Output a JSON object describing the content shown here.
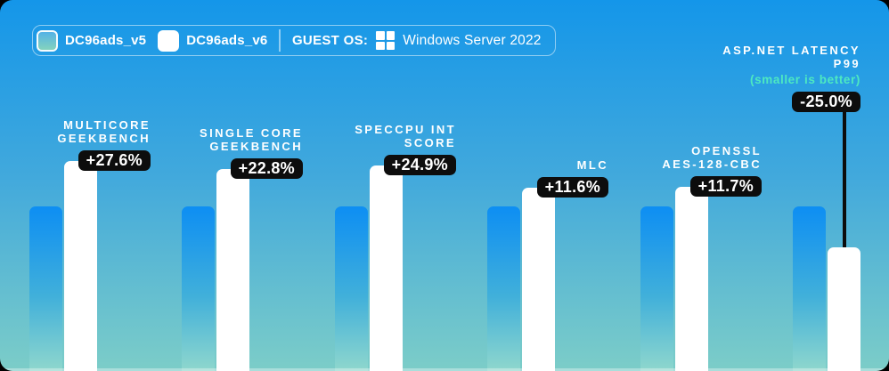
{
  "legend": {
    "series": [
      {
        "label": "DC96ads_v5",
        "swatch": "blue-teal-gradient"
      },
      {
        "label": "DC96ads_v6",
        "swatch": "white"
      }
    ],
    "guest_os_label": "GUEST OS:",
    "guest_os_icon": "windows-logo",
    "guest_os_value": "Windows Server 2022"
  },
  "colors": {
    "background_top": "#1496e9",
    "background_bottom": "#7ccdc8",
    "bar_v5_top": "#0d8ef3",
    "bar_v5_bottom": "#8fd7cd",
    "bar_v6": "#ffffff",
    "badge_bg": "#0d0d0d",
    "badge_text": "#ffffff",
    "note_accent": "#4de9c1",
    "text": "#ffffff"
  },
  "chart_data": {
    "type": "bar",
    "series": [
      "DC96ads_v5",
      "DC96ads_v6"
    ],
    "legend_position": "top-left",
    "grid": false,
    "categories": [
      "Multicore Geekbench",
      "Single Core Geekbench",
      "SPECcpu Int Score",
      "MLC",
      "OpenSSL AES-128-CBC",
      "ASP.NET Latency P99"
    ],
    "groups": [
      {
        "title_lines": [
          "MULTICORE",
          "GEEKBENCH"
        ],
        "delta_label": "+27.6%",
        "delta_pct": 27.6,
        "v5": 100,
        "v6": 127.6,
        "smaller_is_better": false
      },
      {
        "title_lines": [
          "SINGLE CORE",
          "GEEKBENCH"
        ],
        "delta_label": "+22.8%",
        "delta_pct": 22.8,
        "v5": 100,
        "v6": 122.8,
        "smaller_is_better": false
      },
      {
        "title_lines": [
          "SPECCPU INT",
          "SCORE"
        ],
        "delta_label": "+24.9%",
        "delta_pct": 24.9,
        "v5": 100,
        "v6": 124.9,
        "smaller_is_better": false
      },
      {
        "title_lines": [
          "MLC"
        ],
        "delta_label": "+11.6%",
        "delta_pct": 11.6,
        "v5": 100,
        "v6": 111.6,
        "smaller_is_better": false
      },
      {
        "title_lines": [
          "OPENSSL",
          "AES-128-CBC"
        ],
        "delta_label": "+11.7%",
        "delta_pct": 11.7,
        "v5": 100,
        "v6": 111.7,
        "smaller_is_better": false
      },
      {
        "title_lines": [
          "ASP.NET LATENCY",
          "P99"
        ],
        "note": "(smaller is better)",
        "delta_label": "-25.0%",
        "delta_pct": -25.0,
        "v5": 100,
        "v6": 75.0,
        "smaller_is_better": true
      }
    ]
  }
}
